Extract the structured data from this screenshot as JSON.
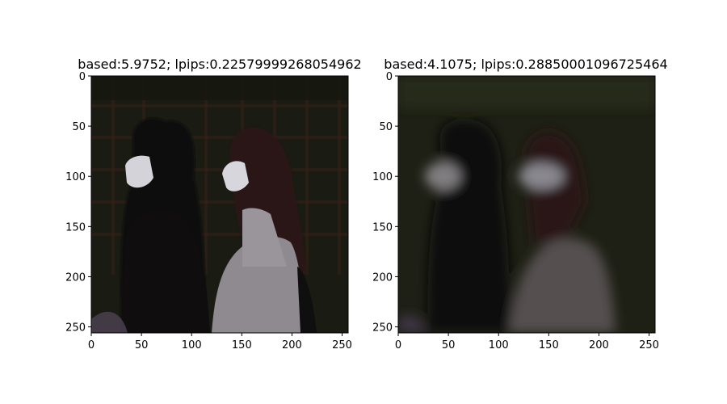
{
  "chart_data": [
    {
      "type": "image",
      "title": "based:5.9752; lpips:0.22579999268054962",
      "xlim": [
        0,
        256
      ],
      "ylim": [
        256,
        0
      ],
      "xticks": [
        0,
        50,
        100,
        150,
        200,
        250
      ],
      "yticks": [
        0,
        50,
        100,
        150,
        200,
        250
      ],
      "image": "sharp night photo of two women walking; left woman with long dark hair, white face mask and black top; right woman with dark red hair, white mask and white shirt; dark background with reddish grid lines"
    },
    {
      "type": "image",
      "title": "based:4.1075; lpips:0.28850001096725464",
      "xlim": [
        0,
        256
      ],
      "ylim": [
        256,
        0
      ],
      "xticks": [
        0,
        50,
        100,
        150,
        200,
        250
      ],
      "yticks": [
        0,
        50,
        100,
        150,
        200,
        250
      ],
      "image": "blurred reconstruction of the same scene; two walking figures with faint white masks, dark olive background"
    }
  ],
  "colors": {
    "background_dark": "#1c1f14",
    "grid_red": "#4a2620",
    "mask_white": "#cfcfd6",
    "shirt_white": "#a09aa0",
    "hair_dark": "#0d0b0b",
    "hair_red": "#2e1514"
  }
}
